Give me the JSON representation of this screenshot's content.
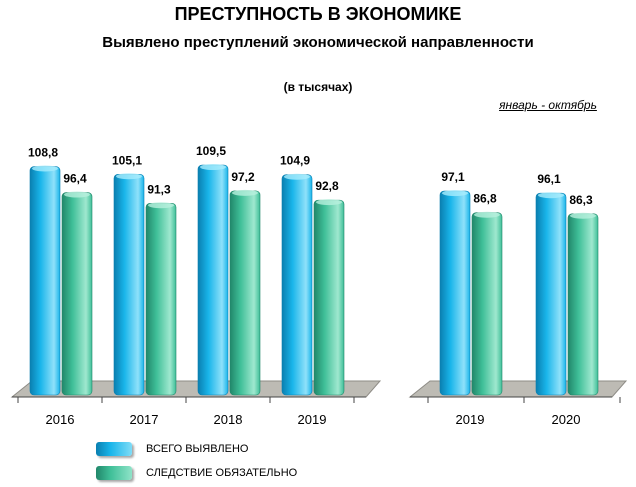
{
  "title": "ПРЕСТУПНОСТЬ В ЭКОНОМИКЕ",
  "subtitle": "Выявлено преступлений экономической направленности",
  "units_label": "(в тысячах)",
  "period_label": "январь - октябрь",
  "legend": {
    "item1": "ВСЕГО ВЫЯВЛЕНО",
    "item2": "СЛЕДСТВИЕ ОБЯЗАТЕЛЬНО"
  },
  "colors": {
    "series1": "#19b5ea",
    "series1_dark": "#0a7fb0",
    "series2": "#3fbf98",
    "series2_dark": "#21876a",
    "floor": "#bdbbb4",
    "floor_edge": "#8e8c86"
  },
  "chart_data": [
    {
      "type": "bar",
      "categories": [
        "2016",
        "2017",
        "2018",
        "2019"
      ],
      "series": [
        {
          "name": "ВСЕГО ВЫЯВЛЕНО",
          "values": [
            108.8,
            105.1,
            109.5,
            104.9
          ],
          "labels": [
            "108,8",
            "105,1",
            "109,5",
            "104,9"
          ]
        },
        {
          "name": "СЛЕДСТВИЕ ОБЯЗАТЕЛЬНО",
          "values": [
            96.4,
            91.3,
            97.2,
            92.8
          ],
          "labels": [
            "96,4",
            "91,3",
            "97,2",
            "92,8"
          ]
        }
      ],
      "ylim": [
        0,
        110
      ]
    },
    {
      "type": "bar",
      "categories": [
        "2019",
        "2020"
      ],
      "series": [
        {
          "name": "ВСЕГО ВЫЯВЛЕНО",
          "values": [
            97.1,
            96.1
          ],
          "labels": [
            "97,1",
            "96,1"
          ]
        },
        {
          "name": "СЛЕДСТВИЕ ОБЯЗАТЕЛЬНО",
          "values": [
            86.8,
            86.3
          ],
          "labels": [
            "86,8",
            "86,3"
          ]
        }
      ],
      "ylim": [
        0,
        110
      ]
    }
  ]
}
